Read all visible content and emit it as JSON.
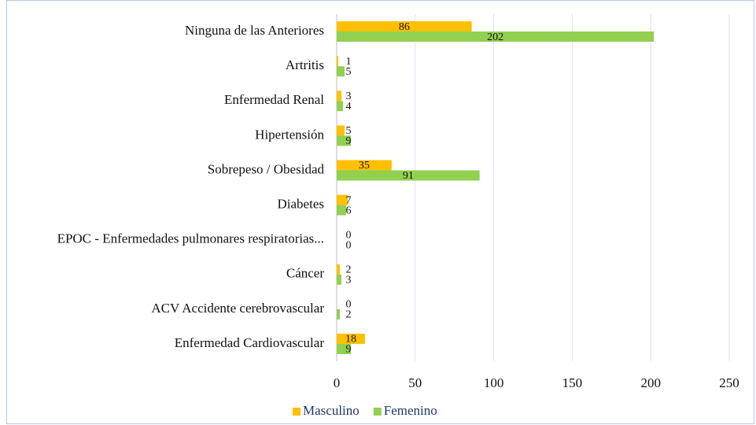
{
  "chart_data": {
    "type": "hbar",
    "categories": [
      "Ninguna de las Anteriores",
      "Artritis",
      "Enfermedad Renal",
      "Hipertensión",
      "Sobrepeso / Obesidad",
      "Diabetes",
      "EPOC - Enfermedades pulmonares respiratorias...",
      "Cáncer",
      "ACV Accidente cerebrovascular",
      "Enfermedad Cardiovascular"
    ],
    "series": [
      {
        "name": "Masculino",
        "color": "#ffc000",
        "values": [
          86,
          1,
          3,
          5,
          35,
          7,
          0,
          2,
          0,
          18
        ]
      },
      {
        "name": "Femenino",
        "color": "#92d050",
        "values": [
          202,
          5,
          4,
          9,
          91,
          6,
          0,
          3,
          2,
          9
        ]
      }
    ],
    "xlim": [
      0,
      250
    ],
    "xticks": [
      0,
      50,
      100,
      150,
      200,
      250
    ],
    "grid": true,
    "legend": "bottom"
  }
}
